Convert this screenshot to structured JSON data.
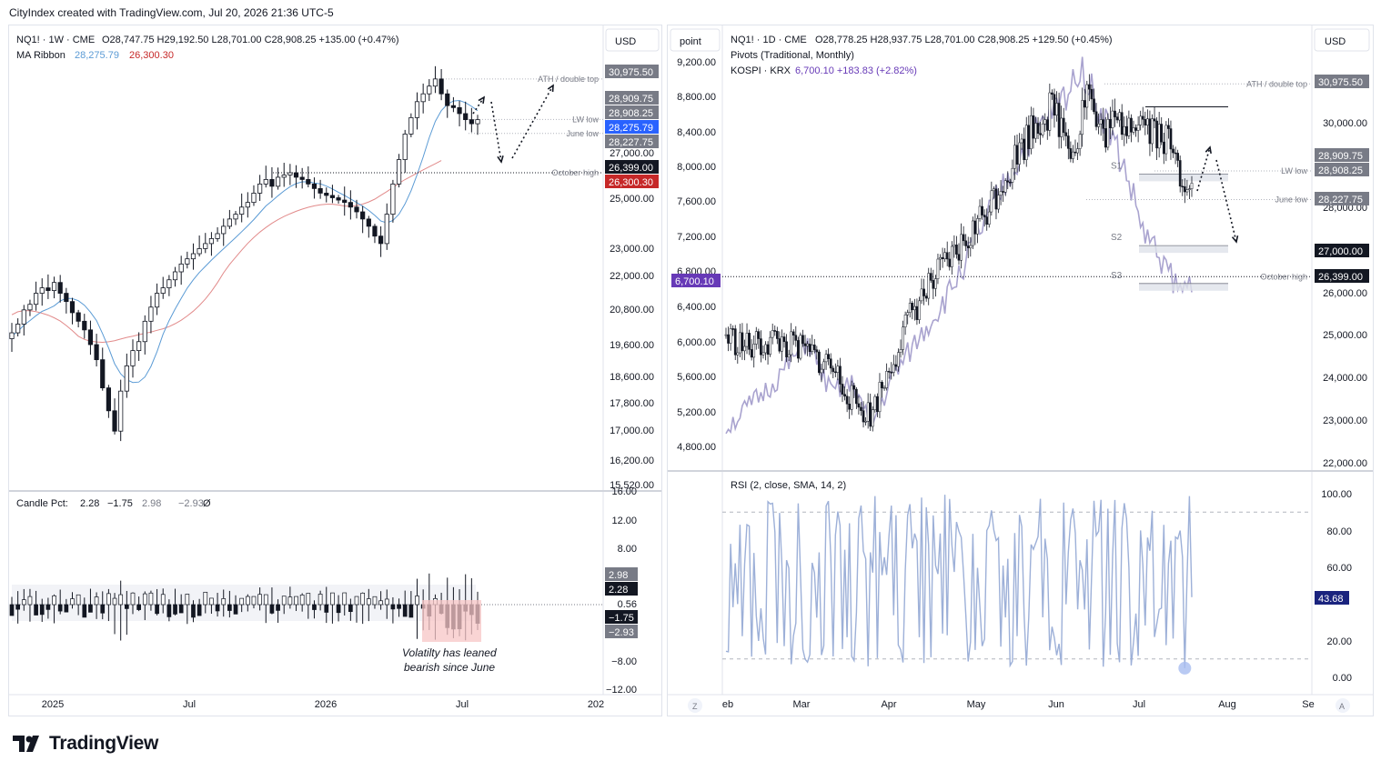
{
  "header": {
    "text": "CityIndex created with TradingView.com, Jul 20, 2026 21:36 UTC-5"
  },
  "footer": {
    "brand": "TradingView"
  },
  "colors": {
    "up": "#ffffff",
    "down": "#131722",
    "ma_fast": "#5b9bd5",
    "ma_slow": "#e28b8b",
    "kospi": "#a9a3cf",
    "rsi": "#9db0d8",
    "label_gray": "#787b86",
    "badge_blue": "#2962ff",
    "badge_red": "#c62828",
    "badge_purple": "#673ab7",
    "badge_navy": "#1a237e"
  },
  "left": {
    "legend": {
      "title": "NQ1! · 1W · CME",
      "ohlc": "O28,747.75  H29,192.50  L28,701.00  C28,908.25  +135.00 (+0.47%)",
      "ma_label": "MA Ribbon",
      "ma_fast": "28,275.79",
      "ma_slow": "26,300.30"
    },
    "currency": "USD",
    "price_axis": [
      "27,000.00",
      "25,000.00",
      "23,000.00",
      "22,000.00",
      "20,800.00",
      "19,600.00",
      "18,600.00",
      "17,800.00",
      "17,000.00",
      "16,200.00",
      "15,520.00"
    ],
    "badges": [
      {
        "text": "30,975.50",
        "color": "#787b86"
      },
      {
        "text": "28,909.75",
        "color": "#787b86"
      },
      {
        "text": "28,908.25",
        "color": "#787b86"
      },
      {
        "text": "28,275.79",
        "color": "#2962ff"
      },
      {
        "text": "28,227.75",
        "color": "#787b86"
      },
      {
        "text": "26,399.00",
        "color": "#131722"
      },
      {
        "text": "26,300.30",
        "color": "#c62828"
      }
    ],
    "levels": {
      "ath": "ATH / double top",
      "lw_low": "LW low",
      "june_low": "June low",
      "october_high": "October high"
    },
    "lower": {
      "legend_name": "Candle Pct:",
      "legend_values": [
        "2.28",
        "−1.75",
        "2.98",
        "−2.93",
        "Ø"
      ],
      "axis": [
        "16.00",
        "12.00",
        "8.00",
        "0.56",
        "−8.00",
        "−12.00"
      ],
      "badges": [
        {
          "text": "2.98",
          "color": "#787b86"
        },
        {
          "text": "2.28",
          "color": "#131722"
        },
        {
          "text": "−1.75",
          "color": "#131722"
        },
        {
          "text": "−2.93",
          "color": "#787b86"
        }
      ],
      "annotation_line1": "Volatilty has leaned",
      "annotation_line2": "bearish since June"
    },
    "time_axis": [
      "2025",
      "Jul",
      "2026",
      "Jul",
      "202"
    ]
  },
  "right": {
    "legend": {
      "title": "NQ1! · 1D · CME",
      "ohlc": "O28,778.25  H28,937.75  L28,701.00  C28,908.25  +129.50 (+0.45%)",
      "pivots": "Pivots (Traditional, Monthly)",
      "kospi_name": "KOSPI · KRX",
      "kospi_values": "6,700.10  +183.83 (+2.82%)"
    },
    "left_axis_title": "point",
    "left_axis": [
      "9,200.00",
      "8,800.00",
      "8,400.00",
      "8,000.00",
      "7,600.00",
      "7,200.00",
      "6,800.00",
      "6,400.00",
      "6,000.00",
      "5,600.00",
      "5,200.00",
      "4,800.00"
    ],
    "left_badge": "6,700.10",
    "currency": "USD",
    "price_axis": [
      "30,000.00",
      "28,000.00",
      "26,000.00",
      "25,000.00",
      "24,000.00",
      "23,000.00",
      "22,000.00"
    ],
    "badges": [
      {
        "text": "30,975.50",
        "color": "#787b86"
      },
      {
        "text": "28,909.75",
        "color": "#787b86"
      },
      {
        "text": "28,908.25",
        "color": "#787b86"
      },
      {
        "text": "28,227.75",
        "color": "#787b86"
      },
      {
        "text": "27,000.00",
        "color": "#131722"
      },
      {
        "text": "26,399.00",
        "color": "#131722"
      }
    ],
    "levels": {
      "ath": "ATH / double top",
      "lw_low": "LW low",
      "june_low": "June low",
      "october_high": "October high",
      "s1": "S1",
      "s2": "S2",
      "s3": "S3"
    },
    "rsi": {
      "legend": "RSI (2, close, SMA, 14, 2)",
      "axis": [
        "100.00",
        "80.00",
        "60.00",
        "20.00",
        "0.00"
      ],
      "badge": "43.68"
    },
    "time_axis": [
      "eb",
      "Mar",
      "Apr",
      "May",
      "Jun",
      "Jul",
      "Aug",
      "Se"
    ],
    "corner_left": "Z",
    "corner_right": "A"
  },
  "chart_data": [
    {
      "type": "candlestick",
      "title": "NQ1! · 1W · CME",
      "timeframe": "1W",
      "ylabel": "USD",
      "yscale": "log",
      "ylim": [
        15520,
        31500
      ],
      "x_ticks": [
        "2025",
        "Jul",
        "2026",
        "Jul",
        "202"
      ],
      "last_close": 28908.25,
      "ma_ribbon": {
        "fast": 28275.79,
        "slow": 26300.3
      },
      "levels": [
        {
          "name": "ATH / double top",
          "value": 30975.5
        },
        {
          "name": "LW low",
          "value": 28908.25
        },
        {
          "name": "June low",
          "value": 28227.75
        },
        {
          "name": "October high",
          "value": 26399.0
        }
      ],
      "close_path": [
        20100,
        20400,
        20900,
        21100,
        21500,
        21700,
        21600,
        21900,
        21500,
        21200,
        20800,
        20500,
        20200,
        19700,
        19200,
        18300,
        17600,
        17000,
        18200,
        19000,
        19500,
        19800,
        20500,
        21000,
        21500,
        21700,
        22000,
        22300,
        22600,
        22800,
        23000,
        23200,
        23400,
        23600,
        23800,
        24100,
        24400,
        24600,
        24900,
        25100,
        25500,
        25900,
        26100,
        25800,
        26200,
        26300,
        26400,
        26200,
        26100,
        25900,
        25700,
        25500,
        25400,
        25300,
        25200,
        25100,
        24900,
        24700,
        24400,
        24100,
        23700,
        23400,
        24600,
        25900,
        27000,
        28200,
        29000,
        29800,
        30200,
        30600,
        30975,
        30200,
        29600,
        29500,
        29200,
        28900,
        28700,
        28900
      ]
    },
    {
      "type": "bar",
      "title": "Candle Pct",
      "legend_values": [
        2.28,
        -1.75,
        2.98,
        -2.93
      ],
      "ylim": [
        -12,
        16
      ],
      "note": "Volatilty has leaned bearish since June"
    },
    {
      "type": "candlestick",
      "title": "NQ1! · 1D · CME",
      "timeframe": "1D",
      "ylabel": "USD",
      "ylim": [
        22000,
        31500
      ],
      "x_ticks": [
        "eb",
        "Mar",
        "Apr",
        "May",
        "Jun",
        "Jul",
        "Aug",
        "Se"
      ],
      "last_close": 28908.25,
      "overlay": {
        "name": "KOSPI · KRX",
        "last": 6700.1,
        "change": 183.83,
        "change_pct": 2.82,
        "axis_range": [
          4800,
          9200
        ]
      },
      "pivots": [
        {
          "name": "S1",
          "value": 28750
        },
        {
          "name": "S2",
          "value": 27050
        },
        {
          "name": "S3",
          "value": 26150
        }
      ],
      "levels": [
        {
          "name": "ATH / double top",
          "value": 30975.5
        },
        {
          "name": "LW low",
          "value": 28908.25
        },
        {
          "name": "June low",
          "value": 28227.75
        },
        {
          "name": "October high",
          "value": 26399.0
        }
      ]
    },
    {
      "type": "line",
      "title": "RSI (2, close, SMA, 14, 2)",
      "ylim": [
        0,
        100
      ],
      "last": 43.68,
      "bands": [
        10,
        90
      ]
    }
  ]
}
